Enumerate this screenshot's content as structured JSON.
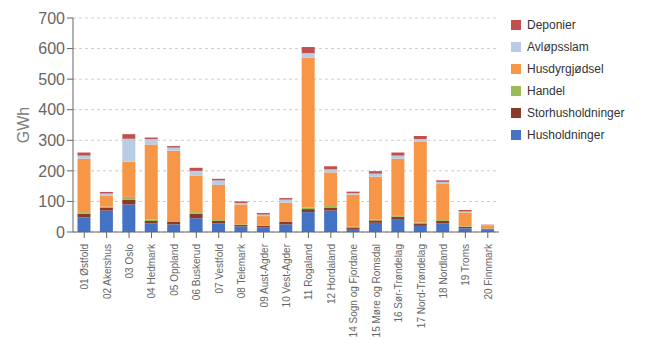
{
  "chart_data": {
    "type": "bar",
    "stacked": true,
    "ylabel": "GWh",
    "categories": [
      "01 Østfold",
      "02 Akershus",
      "03 Oslo",
      "04 Hedmark",
      "05 Oppland",
      "06 Buskerud",
      "07 Vestfold",
      "08 Telemark",
      "09 Aust-Agder",
      "10 Vest-Agder",
      "11 Rogaland",
      "12 Hordaland",
      "14 Sogn og Fjordane",
      "15 Møre og Romsdal",
      "16 Sør-Trøndelag",
      "17 Nord-Trøndelag",
      "18 Nordland",
      "19 Troms",
      "20 Finnmark"
    ],
    "series": [
      {
        "name": "Husholdninger",
        "color": "#4472C4",
        "values": [
          48,
          70,
          90,
          28,
          25,
          45,
          28,
          18,
          15,
          25,
          65,
          70,
          10,
          30,
          40,
          20,
          28,
          12,
          8
        ]
      },
      {
        "name": "Storhusholdninger",
        "color": "#8B3A2A",
        "values": [
          12,
          10,
          15,
          8,
          8,
          15,
          8,
          5,
          5,
          8,
          10,
          10,
          5,
          8,
          10,
          8,
          8,
          5,
          3
        ]
      },
      {
        "name": "Handel",
        "color": "#9BBB59",
        "values": [
          5,
          3,
          10,
          5,
          3,
          5,
          3,
          2,
          2,
          3,
          5,
          5,
          2,
          3,
          5,
          3,
          3,
          2,
          1
        ]
      },
      {
        "name": "Husdyrgjødsel",
        "color": "#F79646",
        "values": [
          175,
          35,
          115,
          245,
          230,
          120,
          115,
          65,
          30,
          60,
          490,
          110,
          105,
          140,
          185,
          265,
          120,
          45,
          8
        ]
      },
      {
        "name": "Avløpsslam",
        "color": "#B8CCE4",
        "values": [
          10,
          8,
          75,
          18,
          10,
          15,
          15,
          5,
          5,
          10,
          15,
          10,
          5,
          10,
          10,
          8,
          5,
          3,
          2
        ]
      },
      {
        "name": "Deponier",
        "color": "#C0504D",
        "values": [
          10,
          5,
          15,
          5,
          5,
          10,
          5,
          5,
          5,
          5,
          20,
          10,
          5,
          8,
          10,
          10,
          5,
          5,
          2
        ]
      }
    ],
    "ylim": [
      0,
      700
    ],
    "yticks": [
      0,
      100,
      200,
      300,
      400,
      500,
      600,
      700
    ],
    "grid": true,
    "legend": "right"
  }
}
